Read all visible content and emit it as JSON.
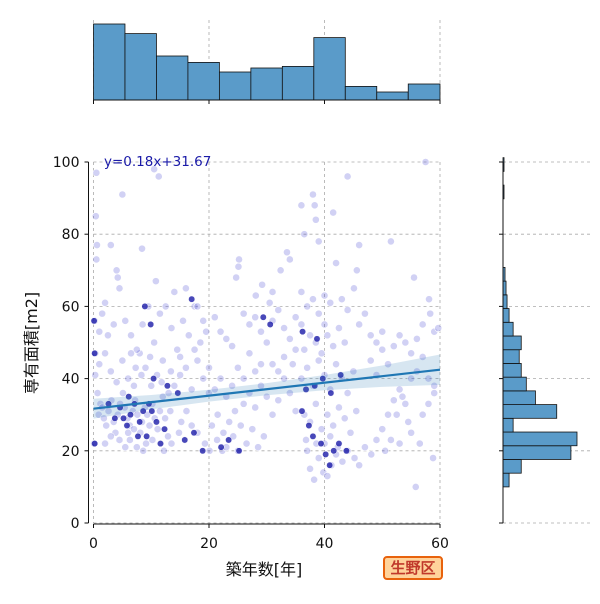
{
  "chart_data": {
    "type": "scatter",
    "title": "",
    "xlabel": "築年数[年]",
    "ylabel": "専有面積[m2]",
    "xlim": [
      0,
      60
    ],
    "ylim": [
      0,
      100
    ],
    "x_ticks": [
      "0",
      "20",
      "40",
      "60"
    ],
    "y_ticks": [
      "0",
      "20",
      "40",
      "60",
      "80",
      "100"
    ],
    "grid": true,
    "annotation": "y=0.18x+31.67",
    "regression": {
      "slope": 0.18,
      "intercept": 31.67
    },
    "district": "生野区",
    "colors": {
      "points": "#5b5bd6",
      "dense_points": "#1a1aa8",
      "line": "#1f77b4",
      "hist": "#5a9bc9"
    },
    "x_histogram": {
      "bin_edges": [
        0,
        5.45,
        10.9,
        16.35,
        21.8,
        27.25,
        32.7,
        38.15,
        43.6,
        49.05,
        54.5,
        60
      ],
      "counts": [
        95,
        83,
        55,
        47,
        35,
        40,
        42,
        78,
        17,
        10,
        20
      ]
    },
    "y_histogram": {
      "bin_edges": [
        10,
        13.8,
        17.6,
        21.4,
        25.2,
        29,
        32.8,
        36.6,
        40.4,
        44.2,
        48,
        51.8,
        55.6,
        59.4,
        63.2,
        67,
        70.8,
        74.6,
        78.4,
        82.2,
        86,
        89.8,
        93.6,
        97.4,
        101.2
      ],
      "counts": [
        6,
        18,
        67,
        73,
        10,
        53,
        32,
        23,
        18,
        16,
        18,
        10,
        6,
        4,
        3,
        2,
        0,
        0,
        0,
        0,
        0,
        1,
        0,
        1
      ]
    },
    "points": [
      [
        0.2,
        56
      ],
      [
        0.3,
        47
      ],
      [
        0.1,
        22
      ],
      [
        0.5,
        97
      ],
      [
        0.4,
        85
      ],
      [
        0.6,
        77
      ],
      [
        0.5,
        73
      ],
      [
        0.3,
        41
      ],
      [
        0.7,
        36
      ],
      [
        0.9,
        30
      ],
      [
        1.2,
        33
      ],
      [
        1.5,
        32
      ],
      [
        1.8,
        29
      ],
      [
        2.2,
        27
      ],
      [
        2.6,
        31
      ],
      [
        3.1,
        34
      ],
      [
        3.5,
        28
      ],
      [
        3.8,
        25
      ],
      [
        4.2,
        30
      ],
      [
        4.6,
        33
      ],
      [
        5.1,
        36
      ],
      [
        5.4,
        32
      ],
      [
        5.9,
        29
      ],
      [
        6.3,
        27
      ],
      [
        6.8,
        31
      ],
      [
        7.2,
        34
      ],
      [
        7.6,
        30
      ],
      [
        8.1,
        25
      ],
      [
        8.4,
        28
      ],
      [
        8.9,
        32
      ],
      [
        9.3,
        30
      ],
      [
        9.7,
        27
      ],
      [
        10.2,
        33
      ],
      [
        10.6,
        29
      ],
      [
        11.1,
        26
      ],
      [
        11.5,
        31
      ],
      [
        12.0,
        35
      ],
      [
        12.4,
        29
      ],
      [
        12.9,
        24
      ],
      [
        13.3,
        31
      ],
      [
        1.0,
        44
      ],
      [
        2.0,
        47
      ],
      [
        3.0,
        42
      ],
      [
        4.0,
        39
      ],
      [
        5.0,
        45
      ],
      [
        6.0,
        40
      ],
      [
        7.0,
        38
      ],
      [
        8.0,
        47
      ],
      [
        9.0,
        43
      ],
      [
        10.0,
        38
      ],
      [
        11.0,
        41
      ],
      [
        12.0,
        45
      ],
      [
        13.0,
        36
      ],
      [
        14.0,
        38
      ],
      [
        15.0,
        41
      ],
      [
        16.0,
        43
      ],
      [
        17.0,
        37
      ],
      [
        18.0,
        45
      ],
      [
        19.0,
        40
      ],
      [
        20.0,
        36
      ],
      [
        4.2,
        68
      ],
      [
        4.5,
        65
      ],
      [
        3.0,
        77
      ],
      [
        4.0,
        70
      ],
      [
        2.5,
        52
      ],
      [
        5.5,
        56
      ],
      [
        6.5,
        52
      ],
      [
        7.5,
        48
      ],
      [
        8.5,
        55
      ],
      [
        9.5,
        60
      ],
      [
        10.5,
        50
      ],
      [
        11.5,
        58
      ],
      [
        12.5,
        60
      ],
      [
        13.5,
        54
      ],
      [
        14.5,
        48
      ],
      [
        15.5,
        56
      ],
      [
        16.5,
        52
      ],
      [
        17.5,
        60
      ],
      [
        18.5,
        50
      ],
      [
        19.5,
        53
      ],
      [
        5.0,
        91
      ],
      [
        10.5,
        98
      ],
      [
        11.3,
        96
      ],
      [
        8.4,
        76
      ],
      [
        10.8,
        67
      ],
      [
        8.6,
        20
      ],
      [
        9.1,
        22
      ],
      [
        10.2,
        23
      ],
      [
        7.5,
        21
      ],
      [
        6.3,
        23
      ],
      [
        2.0,
        22
      ],
      [
        3.0,
        24
      ],
      [
        4.5,
        23
      ],
      [
        5.5,
        21
      ],
      [
        6.0,
        25
      ],
      [
        7.0,
        26
      ],
      [
        12.2,
        20
      ],
      [
        13.5,
        22
      ],
      [
        14.8,
        25
      ],
      [
        15.2,
        28
      ],
      [
        16.1,
        31
      ],
      [
        17.0,
        27
      ],
      [
        18.0,
        25
      ],
      [
        19.3,
        22
      ],
      [
        20.1,
        20
      ],
      [
        21.4,
        23
      ],
      [
        22.3,
        20
      ],
      [
        23.0,
        21
      ],
      [
        24.2,
        24
      ],
      [
        25.0,
        20
      ],
      [
        20.5,
        27
      ],
      [
        21.5,
        30
      ],
      [
        22.5,
        25
      ],
      [
        23.5,
        28
      ],
      [
        24.5,
        31
      ],
      [
        25.5,
        27
      ],
      [
        26.5,
        22
      ],
      [
        27.5,
        26
      ],
      [
        28.5,
        21
      ],
      [
        29.5,
        24
      ],
      [
        26.0,
        33
      ],
      [
        27.0,
        36
      ],
      [
        28.0,
        32
      ],
      [
        29.0,
        38
      ],
      [
        30.0,
        35
      ],
      [
        31.0,
        30
      ],
      [
        32.0,
        34
      ],
      [
        33.0,
        40
      ],
      [
        34.0,
        36
      ],
      [
        35.0,
        31
      ],
      [
        25.2,
        73
      ],
      [
        25.1,
        71
      ],
      [
        24.7,
        68
      ],
      [
        28.1,
        63
      ],
      [
        29.2,
        66
      ],
      [
        30.5,
        61
      ],
      [
        31.0,
        64
      ],
      [
        32.4,
        70
      ],
      [
        33.5,
        75
      ],
      [
        34.0,
        73
      ],
      [
        26.0,
        58
      ],
      [
        27.0,
        55
      ],
      [
        28.0,
        57
      ],
      [
        29.0,
        53
      ],
      [
        30.0,
        50
      ],
      [
        31.0,
        56
      ],
      [
        32.0,
        59
      ],
      [
        33.0,
        54
      ],
      [
        34.0,
        51
      ],
      [
        35.0,
        57
      ],
      [
        36.0,
        55
      ],
      [
        37.0,
        60
      ],
      [
        38.0,
        62
      ],
      [
        39.0,
        58
      ],
      [
        40.0,
        55
      ],
      [
        41.0,
        61
      ],
      [
        36.5,
        48
      ],
      [
        37.5,
        52
      ],
      [
        38.5,
        50
      ],
      [
        39.5,
        47
      ],
      [
        40.5,
        52
      ],
      [
        41.5,
        49
      ],
      [
        42.5,
        54
      ],
      [
        43.5,
        50
      ],
      [
        36.0,
        88
      ],
      [
        38.0,
        91
      ],
      [
        38.3,
        88
      ],
      [
        36.5,
        80
      ],
      [
        39.0,
        78
      ],
      [
        42.0,
        72
      ],
      [
        46.0,
        77
      ],
      [
        45.6,
        70
      ],
      [
        45.1,
        65
      ],
      [
        43.0,
        62
      ],
      [
        44.0,
        59
      ],
      [
        46.0,
        55
      ],
      [
        47.0,
        58
      ],
      [
        48.0,
        52
      ],
      [
        49.0,
        50
      ],
      [
        50.0,
        53
      ],
      [
        36.0,
        40
      ],
      [
        37.0,
        43
      ],
      [
        38.0,
        38
      ],
      [
        39.0,
        45
      ],
      [
        40.0,
        41
      ],
      [
        41.0,
        37
      ],
      [
        42.0,
        44
      ],
      [
        43.0,
        40
      ],
      [
        44.0,
        36
      ],
      [
        45.0,
        42
      ],
      [
        36.5,
        30
      ],
      [
        37.5,
        28
      ],
      [
        38.5,
        33
      ],
      [
        39.5,
        26
      ],
      [
        40.5,
        30
      ],
      [
        41.5,
        27
      ],
      [
        42.5,
        32
      ],
      [
        43.5,
        29
      ],
      [
        44.5,
        25
      ],
      [
        45.5,
        31
      ],
      [
        37.0,
        20
      ],
      [
        37.5,
        15
      ],
      [
        38.2,
        12
      ],
      [
        39.0,
        18
      ],
      [
        39.8,
        14
      ],
      [
        40.5,
        13
      ],
      [
        41.2,
        16
      ],
      [
        42.0,
        19
      ],
      [
        36.8,
        23
      ],
      [
        38.6,
        22
      ],
      [
        40.0,
        22
      ],
      [
        41.0,
        24
      ],
      [
        42.3,
        21
      ],
      [
        43.1,
        17
      ],
      [
        44.0,
        20
      ],
      [
        45.2,
        18
      ],
      [
        46.0,
        16
      ],
      [
        47.0,
        21
      ],
      [
        48.1,
        19
      ],
      [
        49.0,
        23
      ],
      [
        50.0,
        26
      ],
      [
        51.0,
        30
      ],
      [
        52.0,
        34
      ],
      [
        53.0,
        37
      ],
      [
        54.0,
        33
      ],
      [
        55.0,
        40
      ],
      [
        56.0,
        42
      ],
      [
        57.0,
        46
      ],
      [
        58.0,
        40
      ],
      [
        59.0,
        38
      ],
      [
        48.0,
        45
      ],
      [
        49.0,
        41
      ],
      [
        50.0,
        48
      ],
      [
        51.0,
        44
      ],
      [
        52.0,
        49
      ],
      [
        53.0,
        52
      ],
      [
        54.0,
        50
      ],
      [
        55.0,
        47
      ],
      [
        56.0,
        51
      ],
      [
        57.0,
        55
      ],
      [
        51.5,
        78
      ],
      [
        55.5,
        68
      ],
      [
        57.5,
        100
      ],
      [
        58.3,
        58
      ],
      [
        58.1,
        62
      ],
      [
        59.0,
        53
      ],
      [
        59.7,
        54
      ],
      [
        58.8,
        18
      ],
      [
        55.8,
        10
      ],
      [
        56.5,
        22
      ],
      [
        52.5,
        30
      ],
      [
        53.5,
        35
      ],
      [
        54.5,
        28
      ],
      [
        55.0,
        25
      ],
      [
        57.0,
        30
      ],
      [
        58.0,
        33
      ],
      [
        59.0,
        36
      ],
      [
        50.5,
        20
      ],
      [
        51.5,
        23
      ],
      [
        53.0,
        22
      ],
      [
        44.0,
        96
      ],
      [
        41.5,
        86
      ],
      [
        38.5,
        84
      ],
      [
        40.0,
        63
      ],
      [
        36.0,
        64
      ],
      [
        35.0,
        48
      ],
      [
        34.5,
        44
      ],
      [
        33.0,
        46
      ],
      [
        32.0,
        42
      ],
      [
        31.0,
        44
      ],
      [
        29.0,
        44
      ],
      [
        28.0,
        42
      ],
      [
        27.0,
        47
      ],
      [
        26.0,
        40
      ],
      [
        25.0,
        43
      ],
      [
        24.0,
        38
      ],
      [
        23.0,
        35
      ],
      [
        22.0,
        40
      ],
      [
        21.0,
        37
      ],
      [
        20.0,
        43
      ],
      [
        14.0,
        64
      ],
      [
        16.0,
        65
      ],
      [
        18.0,
        60
      ],
      [
        19.0,
        56
      ],
      [
        21.0,
        57
      ],
      [
        22.0,
        53
      ],
      [
        23.0,
        51
      ],
      [
        24.0,
        49
      ],
      [
        17.5,
        48
      ],
      [
        15.0,
        46
      ],
      [
        2.0,
        61
      ],
      [
        1.0,
        53
      ],
      [
        1.5,
        58
      ],
      [
        3.5,
        55
      ],
      [
        6.5,
        47
      ],
      [
        7.3,
        43
      ],
      [
        8.3,
        41
      ],
      [
        9.8,
        46
      ],
      [
        11.8,
        39
      ],
      [
        13.4,
        42
      ]
    ],
    "dense_points": [
      [
        0.1,
        56
      ],
      [
        0.2,
        47
      ],
      [
        0.2,
        22
      ],
      [
        5.2,
        29
      ],
      [
        5.8,
        27
      ],
      [
        6.4,
        30
      ],
      [
        7.1,
        33
      ],
      [
        8.0,
        28
      ],
      [
        8.6,
        31
      ],
      [
        9.2,
        24
      ],
      [
        10.1,
        31
      ],
      [
        10.9,
        28
      ],
      [
        11.6,
        22
      ],
      [
        12.3,
        26
      ],
      [
        15.8,
        23
      ],
      [
        17.4,
        25
      ],
      [
        18.9,
        20
      ],
      [
        22.1,
        21
      ],
      [
        23.4,
        23
      ],
      [
        25.2,
        20
      ],
      [
        36.1,
        31
      ],
      [
        37.3,
        27
      ],
      [
        38.0,
        24
      ],
      [
        39.4,
        22
      ],
      [
        40.2,
        19
      ],
      [
        40.9,
        16
      ],
      [
        41.6,
        20
      ],
      [
        42.5,
        22
      ],
      [
        43.8,
        20
      ],
      [
        36.8,
        37
      ],
      [
        38.3,
        38
      ],
      [
        39.7,
        40
      ],
      [
        41.1,
        36
      ],
      [
        42.8,
        41
      ],
      [
        8.9,
        60
      ],
      [
        9.9,
        55
      ],
      [
        17.0,
        62
      ],
      [
        29.4,
        57
      ],
      [
        30.6,
        55
      ],
      [
        36.2,
        53
      ],
      [
        38.7,
        51
      ],
      [
        10.4,
        40
      ],
      [
        12.8,
        38
      ],
      [
        14.6,
        36
      ],
      [
        2.6,
        33
      ],
      [
        3.7,
        29
      ],
      [
        4.6,
        32
      ],
      [
        6.1,
        35
      ],
      [
        7.7,
        24
      ],
      [
        9.6,
        33
      ]
    ]
  }
}
